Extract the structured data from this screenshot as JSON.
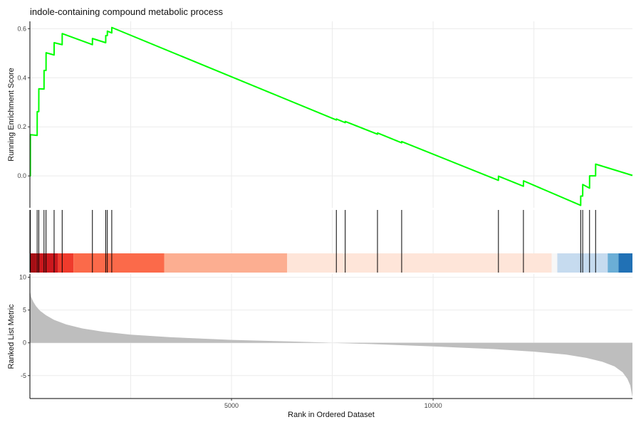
{
  "chart_data": {
    "type": "line",
    "title": "indole-containing compound metabolic process",
    "xlabel": "Rank in Ordered Dataset",
    "ylabel_es": "Running Enrichment Score",
    "ylabel_rank": "Ranked List Metric",
    "xlim": [
      0,
      14944
    ],
    "x_ticks": [
      5000,
      10000
    ],
    "es_ylim": [
      -0.13,
      0.63
    ],
    "es_ticks": [
      0.0,
      0.2,
      0.4,
      0.6
    ],
    "rank_ylim": [
      -8.5,
      10.5
    ],
    "rank_ticks": [
      -5,
      0,
      5,
      10
    ],
    "grid": true,
    "line_color": "#00ff00",
    "hit_color": "#000000",
    "metric_color": "#bebebe",
    "hits": [
      10,
      180,
      220,
      350,
      400,
      600,
      800,
      1550,
      1880,
      1920,
      2030,
      7600,
      7820,
      8620,
      9220,
      11620,
      12240,
      13660,
      13710,
      13880,
      14030
    ],
    "running_es": [
      {
        "x": 0,
        "y": 0.0
      },
      {
        "x": 10,
        "y": 0.0
      },
      {
        "x": 11,
        "y": 0.168
      },
      {
        "x": 180,
        "y": 0.165
      },
      {
        "x": 181,
        "y": 0.262
      },
      {
        "x": 220,
        "y": 0.262
      },
      {
        "x": 221,
        "y": 0.355
      },
      {
        "x": 350,
        "y": 0.354
      },
      {
        "x": 351,
        "y": 0.43
      },
      {
        "x": 400,
        "y": 0.43
      },
      {
        "x": 401,
        "y": 0.502
      },
      {
        "x": 600,
        "y": 0.493
      },
      {
        "x": 601,
        "y": 0.543
      },
      {
        "x": 800,
        "y": 0.535
      },
      {
        "x": 801,
        "y": 0.58
      },
      {
        "x": 1550,
        "y": 0.535
      },
      {
        "x": 1551,
        "y": 0.56
      },
      {
        "x": 1880,
        "y": 0.543
      },
      {
        "x": 1881,
        "y": 0.572
      },
      {
        "x": 1920,
        "y": 0.572
      },
      {
        "x": 1921,
        "y": 0.59
      },
      {
        "x": 2030,
        "y": 0.583
      },
      {
        "x": 2031,
        "y": 0.605
      },
      {
        "x": 7600,
        "y": 0.228
      },
      {
        "x": 7601,
        "y": 0.232
      },
      {
        "x": 7820,
        "y": 0.217
      },
      {
        "x": 7821,
        "y": 0.222
      },
      {
        "x": 8620,
        "y": 0.17
      },
      {
        "x": 8621,
        "y": 0.175
      },
      {
        "x": 9220,
        "y": 0.135
      },
      {
        "x": 9221,
        "y": 0.14
      },
      {
        "x": 11620,
        "y": -0.018
      },
      {
        "x": 11621,
        "y": -0.001
      },
      {
        "x": 12240,
        "y": -0.042
      },
      {
        "x": 12241,
        "y": -0.02
      },
      {
        "x": 13660,
        "y": -0.12
      },
      {
        "x": 13661,
        "y": -0.082
      },
      {
        "x": 13710,
        "y": -0.082
      },
      {
        "x": 13711,
        "y": -0.035
      },
      {
        "x": 13880,
        "y": -0.05
      },
      {
        "x": 13881,
        "y": 0.0
      },
      {
        "x": 14030,
        "y": 0.0
      },
      {
        "x": 14031,
        "y": 0.048
      },
      {
        "x": 14944,
        "y": 0.002
      }
    ],
    "ranked_metric": [
      {
        "x": 0,
        "y": 8.0
      },
      {
        "x": 30,
        "y": 7.0
      },
      {
        "x": 80,
        "y": 6.3
      },
      {
        "x": 150,
        "y": 5.6
      },
      {
        "x": 250,
        "y": 4.9
      },
      {
        "x": 400,
        "y": 4.2
      },
      {
        "x": 600,
        "y": 3.5
      },
      {
        "x": 900,
        "y": 2.8
      },
      {
        "x": 1300,
        "y": 2.2
      },
      {
        "x": 1800,
        "y": 1.7
      },
      {
        "x": 2500,
        "y": 1.25
      },
      {
        "x": 3500,
        "y": 0.85
      },
      {
        "x": 5000,
        "y": 0.45
      },
      {
        "x": 6500,
        "y": 0.2
      },
      {
        "x": 7300,
        "y": 0.05
      },
      {
        "x": 7500,
        "y": 0.0
      },
      {
        "x": 8500,
        "y": -0.2
      },
      {
        "x": 10000,
        "y": -0.55
      },
      {
        "x": 11500,
        "y": -0.95
      },
      {
        "x": 12500,
        "y": -1.35
      },
      {
        "x": 13300,
        "y": -1.8
      },
      {
        "x": 13800,
        "y": -2.3
      },
      {
        "x": 14200,
        "y": -2.9
      },
      {
        "x": 14500,
        "y": -3.6
      },
      {
        "x": 14700,
        "y": -4.5
      },
      {
        "x": 14820,
        "y": -5.5
      },
      {
        "x": 14890,
        "y": -6.5
      },
      {
        "x": 14944,
        "y": -8.3
      }
    ],
    "color_bands": [
      {
        "x0": 0,
        "x1": 150,
        "color": "#a50f15"
      },
      {
        "x0": 150,
        "x1": 700,
        "color": "#cb181d"
      },
      {
        "x0": 700,
        "x1": 1080,
        "color": "#ef3b2c"
      },
      {
        "x0": 1080,
        "x1": 3330,
        "color": "#fb6a4a"
      },
      {
        "x0": 3330,
        "x1": 6380,
        "color": "#fcae91"
      },
      {
        "x0": 6380,
        "x1": 12940,
        "color": "#fee5d9"
      },
      {
        "x0": 12940,
        "x1": 13080,
        "color": "#f7f7f7"
      },
      {
        "x0": 13080,
        "x1": 14330,
        "color": "#c6dbef"
      },
      {
        "x0": 14330,
        "x1": 14600,
        "color": "#6baed6"
      },
      {
        "x0": 14600,
        "x1": 14944,
        "color": "#2171b5"
      }
    ]
  }
}
